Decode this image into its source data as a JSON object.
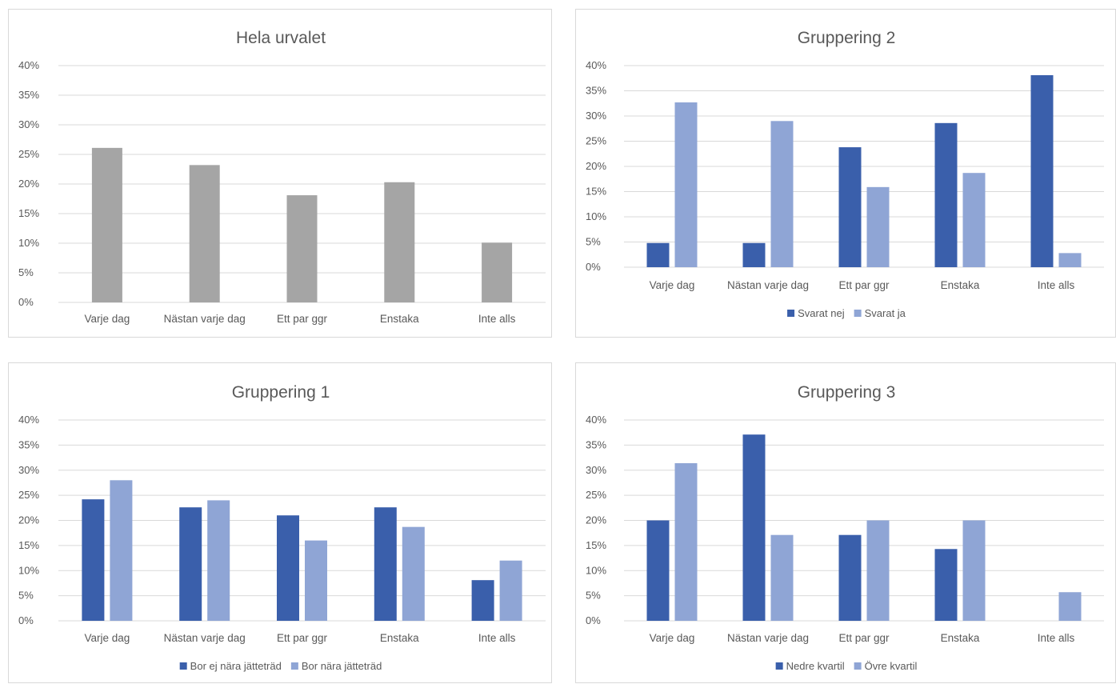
{
  "chart_data": [
    {
      "id": "tl",
      "type": "bar",
      "title": "Hela urvalet",
      "categories": [
        "Varje dag",
        "Nästan varje dag",
        "Ett par ggr",
        "Enstaka",
        "Inte alls"
      ],
      "series": [
        {
          "values": [
            26.1,
            23.2,
            18.1,
            20.3,
            10.1
          ],
          "color": "#a5a5a5"
        }
      ],
      "ylim": [
        0,
        40
      ],
      "yticks": [
        "0%",
        "5%",
        "10%",
        "15%",
        "20%",
        "25%",
        "30%",
        "35%",
        "40%"
      ],
      "grid": true,
      "legend": "none"
    },
    {
      "id": "tr",
      "type": "bar",
      "title": "Gruppering 2",
      "categories": [
        "Varje dag",
        "Nästan varje dag",
        "Ett par ggr",
        "Enstaka",
        "Inte alls"
      ],
      "series": [
        {
          "name": "Svarat nej",
          "values": [
            4.8,
            4.8,
            23.8,
            28.6,
            38.1
          ],
          "color": "#3a5fab"
        },
        {
          "name": "Svarat ja",
          "values": [
            32.7,
            29.0,
            15.9,
            18.7,
            2.8
          ],
          "color": "#8fa5d5"
        }
      ],
      "ylim": [
        0,
        40
      ],
      "yticks": [
        "0%",
        "5%",
        "10%",
        "15%",
        "20%",
        "25%",
        "30%",
        "35%",
        "40%"
      ],
      "grid": true,
      "legend": "bottom"
    },
    {
      "id": "bl",
      "type": "bar",
      "title": "Gruppering 1",
      "categories": [
        "Varje dag",
        "Nästan varje dag",
        "Ett par ggr",
        "Enstaka",
        "Inte alls"
      ],
      "series": [
        {
          "name": "Bor ej nära jätteträd",
          "values": [
            24.2,
            22.6,
            21.0,
            22.6,
            8.1
          ],
          "color": "#3a5fab"
        },
        {
          "name": "Bor nära jätteträd",
          "values": [
            28.0,
            24.0,
            16.0,
            18.7,
            12.0
          ],
          "color": "#8fa5d5"
        }
      ],
      "ylim": [
        0,
        40
      ],
      "yticks": [
        "0%",
        "5%",
        "10%",
        "15%",
        "20%",
        "25%",
        "30%",
        "35%",
        "40%"
      ],
      "grid": true,
      "legend": "bottom"
    },
    {
      "id": "br",
      "type": "bar",
      "title": "Gruppering 3",
      "categories": [
        "Varje dag",
        "Nästan varje dag",
        "Ett par ggr",
        "Enstaka",
        "Inte alls"
      ],
      "series": [
        {
          "name": "Nedre kvartil",
          "values": [
            20.0,
            37.1,
            17.1,
            14.3,
            0
          ],
          "color": "#3a5fab"
        },
        {
          "name": "Övre kvartil",
          "values": [
            31.4,
            17.1,
            20.0,
            20.0,
            5.7
          ],
          "color": "#8fa5d5"
        }
      ],
      "ylim": [
        0,
        40
      ],
      "yticks": [
        "0%",
        "5%",
        "10%",
        "15%",
        "20%",
        "25%",
        "30%",
        "35%",
        "40%"
      ],
      "grid": true,
      "legend": "bottom"
    }
  ]
}
